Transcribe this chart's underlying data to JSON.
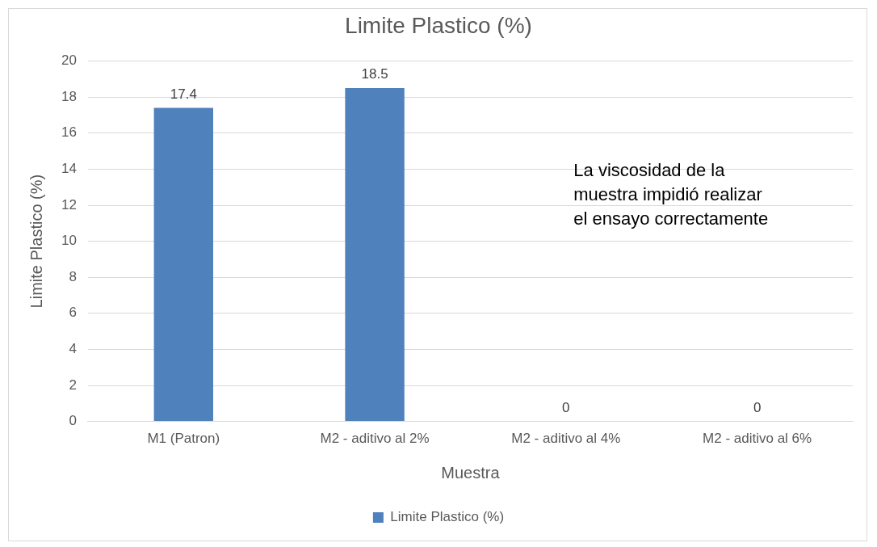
{
  "chart_data": {
    "type": "bar",
    "title": "Limite Plastico (%)",
    "xlabel": "Muestra",
    "ylabel": "Limite Plastico (%)",
    "categories": [
      "M1 (Patron)",
      "M2 - aditivo al 2%",
      "M2 - aditivo al 4%",
      "M2 - aditivo al 6%"
    ],
    "series": [
      {
        "name": "Limite Plastico (%)",
        "color": "#4f81bd",
        "values": [
          17.4,
          18.5,
          0,
          0
        ]
      }
    ],
    "ylim": [
      0,
      20
    ],
    "yticks": [
      0,
      2,
      4,
      6,
      8,
      10,
      12,
      14,
      16,
      18,
      20
    ],
    "grid": "y",
    "legend": "bottom",
    "data_labels": true,
    "annotations": [
      "La viscosidad de la muestra impidió realizar el ensayo correctamente"
    ]
  }
}
